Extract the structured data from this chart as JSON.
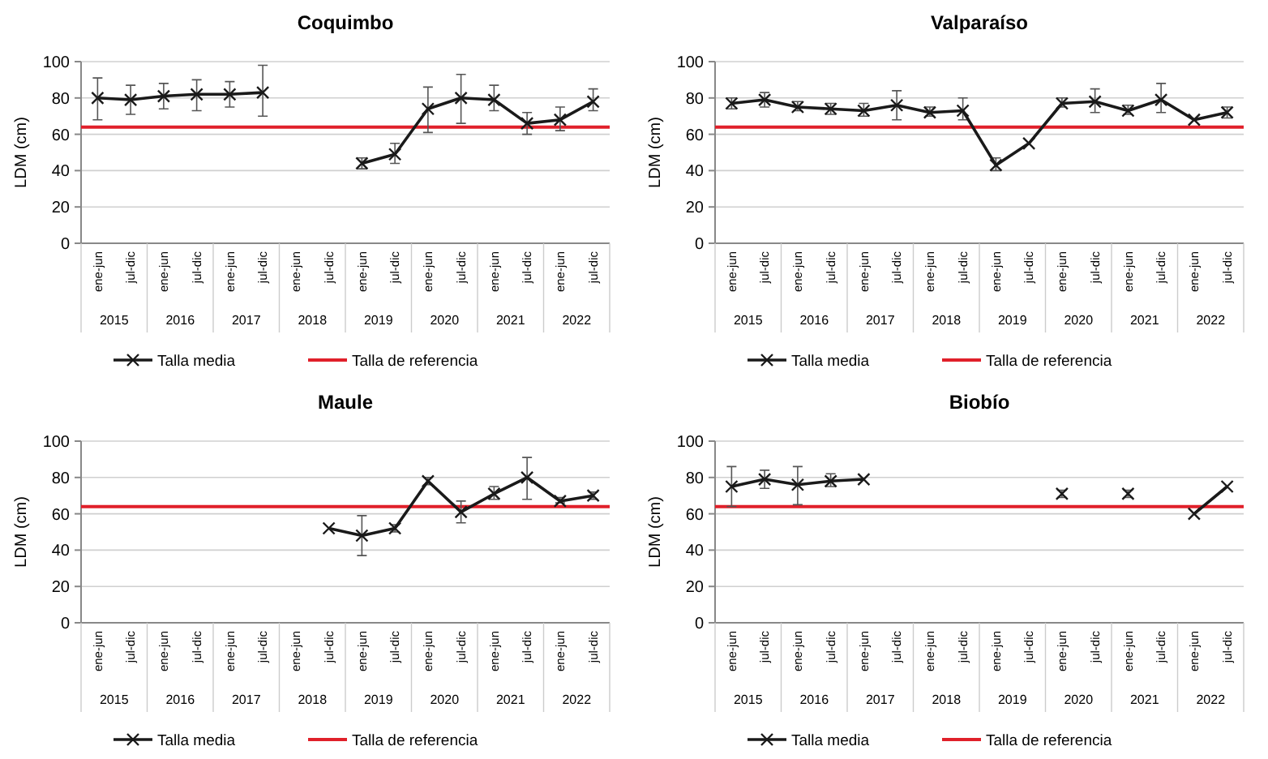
{
  "chart_data": [
    {
      "type": "line",
      "title": "Coquimbo",
      "ylabel": "LDM (cm)",
      "categories": [
        "ene-jun",
        "jul-dic",
        "ene-jun",
        "jul-dic",
        "ene-jun",
        "jul-dic",
        "ene-jun",
        "jul-dic",
        "ene-jun",
        "jul-dic",
        "ene-jun",
        "jul-dic",
        "ene-jun",
        "jul-dic",
        "ene-jun",
        "jul-dic"
      ],
      "annotations": [
        "2015",
        "2016",
        "2017",
        "2018",
        "2019",
        "2020",
        "2021",
        "2022"
      ],
      "ylim": [
        0,
        100
      ],
      "yticks": [
        0,
        20,
        40,
        60,
        80,
        100
      ],
      "grid": "y",
      "legend": "bottom",
      "marker": "cross",
      "line_style": "solid",
      "series": [
        {
          "name": "Talla media",
          "color": "#1a1a1a",
          "values": [
            80,
            79,
            81,
            82,
            82,
            83,
            null,
            null,
            44,
            49,
            74,
            80,
            79,
            66,
            68,
            78
          ],
          "errors": [
            [
              68,
              91
            ],
            [
              71,
              87
            ],
            [
              74,
              88
            ],
            [
              73,
              90
            ],
            [
              75,
              89
            ],
            [
              70,
              98
            ],
            null,
            null,
            [
              41,
              47
            ],
            [
              44,
              55
            ],
            [
              61,
              86
            ],
            [
              66,
              93
            ],
            [
              73,
              87
            ],
            [
              60,
              72
            ],
            [
              62,
              75
            ],
            [
              73,
              85
            ]
          ]
        }
      ],
      "ref_lines": [
        {
          "axis": "y",
          "value": 64,
          "label": "Talla de referencia",
          "color": "#e0202a"
        }
      ]
    },
    {
      "type": "line",
      "title": "Valparaíso",
      "ylabel": "LDM (cm)",
      "categories": [
        "ene-jun",
        "jul-dic",
        "ene-jun",
        "jul-dic",
        "ene-jun",
        "jul-dic",
        "ene-jun",
        "jul-dic",
        "ene-jun",
        "jul-dic",
        "ene-jun",
        "jul-dic",
        "ene-jun",
        "jul-dic",
        "ene-jun",
        "jul-dic"
      ],
      "annotations": [
        "2015",
        "2016",
        "2017",
        "2018",
        "2019",
        "2020",
        "2021",
        "2022"
      ],
      "ylim": [
        0,
        100
      ],
      "yticks": [
        0,
        20,
        40,
        60,
        80,
        100
      ],
      "grid": "y",
      "legend": "bottom",
      "marker": "cross",
      "line_style": "solid",
      "series": [
        {
          "name": "Talla media",
          "color": "#1a1a1a",
          "values": [
            77,
            79,
            75,
            74,
            73,
            76,
            72,
            73,
            43,
            55,
            77,
            78,
            73,
            79,
            68,
            72
          ],
          "errors": [
            [
              74,
              80
            ],
            [
              75,
              83
            ],
            [
              73,
              78
            ],
            [
              71,
              77
            ],
            [
              70,
              77
            ],
            [
              68,
              84
            ],
            [
              70,
              75
            ],
            [
              68,
              80
            ],
            [
              40,
              47
            ],
            null,
            [
              75,
              80
            ],
            [
              72,
              85
            ],
            [
              71,
              76
            ],
            [
              72,
              88
            ],
            null,
            [
              69,
              75
            ]
          ]
        }
      ],
      "ref_lines": [
        {
          "axis": "y",
          "value": 64,
          "label": "Talla de referencia",
          "color": "#e0202a"
        }
      ]
    },
    {
      "type": "line",
      "title": "Maule",
      "ylabel": "LDM (cm)",
      "categories": [
        "ene-jun",
        "jul-dic",
        "ene-jun",
        "jul-dic",
        "ene-jun",
        "jul-dic",
        "ene-jun",
        "jul-dic",
        "ene-jun",
        "jul-dic",
        "ene-jun",
        "jul-dic",
        "ene-jun",
        "jul-dic",
        "ene-jun",
        "jul-dic"
      ],
      "annotations": [
        "2015",
        "2016",
        "2017",
        "2018",
        "2019",
        "2020",
        "2021",
        "2022"
      ],
      "ylim": [
        0,
        100
      ],
      "yticks": [
        0,
        20,
        40,
        60,
        80,
        100
      ],
      "grid": "y",
      "legend": "bottom",
      "marker": "cross",
      "line_style": "solid",
      "series": [
        {
          "name": "Talla media",
          "color": "#1a1a1a",
          "values": [
            null,
            null,
            null,
            null,
            null,
            null,
            null,
            52,
            48,
            52,
            78,
            61,
            71,
            80,
            67,
            70
          ],
          "errors": [
            null,
            null,
            null,
            null,
            null,
            null,
            null,
            null,
            [
              37,
              59
            ],
            [
              50,
              54
            ],
            [
              76,
              80
            ],
            [
              55,
              67
            ],
            [
              68,
              75
            ],
            [
              68,
              91
            ],
            [
              66,
              69
            ],
            [
              68,
              72
            ]
          ]
        }
      ],
      "ref_lines": [
        {
          "axis": "y",
          "value": 64,
          "label": "Talla de referencia",
          "color": "#e0202a"
        }
      ]
    },
    {
      "type": "line",
      "title": "Biobío",
      "ylabel": "LDM (cm)",
      "categories": [
        "ene-jun",
        "jul-dic",
        "ene-jun",
        "jul-dic",
        "ene-jun",
        "jul-dic",
        "ene-jun",
        "jul-dic",
        "ene-jun",
        "jul-dic",
        "ene-jun",
        "jul-dic",
        "ene-jun",
        "jul-dic",
        "ene-jun",
        "jul-dic"
      ],
      "annotations": [
        "2015",
        "2016",
        "2017",
        "2018",
        "2019",
        "2020",
        "2021",
        "2022"
      ],
      "ylim": [
        0,
        100
      ],
      "yticks": [
        0,
        20,
        40,
        60,
        80,
        100
      ],
      "grid": "y",
      "legend": "bottom",
      "marker": "cross",
      "line_style": "solid",
      "series": [
        {
          "name": "Talla media",
          "color": "#1a1a1a",
          "values": [
            75,
            79,
            76,
            78,
            79,
            null,
            null,
            null,
            null,
            null,
            71,
            null,
            71,
            null,
            60,
            75
          ],
          "errors": [
            [
              64,
              86
            ],
            [
              74,
              84
            ],
            [
              65,
              86
            ],
            [
              75,
              82
            ],
            null,
            null,
            null,
            null,
            null,
            null,
            [
              69,
              73
            ],
            null,
            [
              69,
              73
            ],
            null,
            null,
            null
          ]
        }
      ],
      "ref_lines": [
        {
          "axis": "y",
          "value": 64,
          "label": "Talla de referencia",
          "color": "#e0202a"
        }
      ]
    }
  ]
}
